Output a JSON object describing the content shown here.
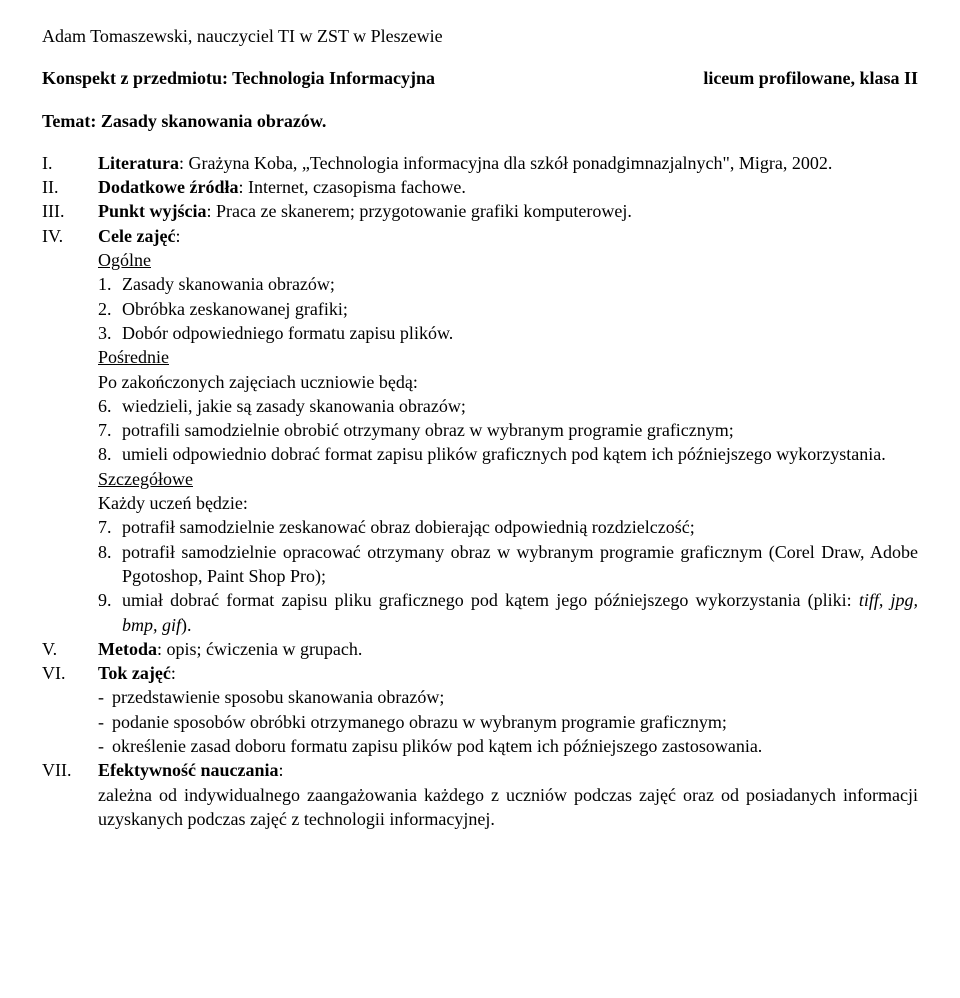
{
  "header": {
    "author": "Adam Tomaszewski, nauczyciel TI w ZST w Pleszewie",
    "subject_label": "Konspekt z przedmiotu: Technologia Informacyjna",
    "class_label": "liceum profilowane, klasa II",
    "topic_prefix": "Temat: ",
    "topic_text": "Zasady skanowania obrazów."
  },
  "items": {
    "I": {
      "label": "I.",
      "prefix": "Literatura",
      "rest": ": Grażyna Koba, „Technologia informacyjna dla szkół ponadgimnazjalnych\", Migra, 2002."
    },
    "II": {
      "label": "II.",
      "prefix": "Dodatkowe źródła",
      "rest": ": Internet, czasopisma fachowe."
    },
    "III": {
      "label": "III.",
      "prefix": "Punkt wyjścia",
      "rest": ": Praca ze skanerem; przygotowanie grafiki komputerowej."
    },
    "IV": {
      "label": "IV.",
      "prefix": "Cele zajęć",
      "rest": ":",
      "ogolne": "Ogólne",
      "o1": "Zasady skanowania obrazów;",
      "o2": "Obróbka zeskanowanej grafiki;",
      "o3": "Dobór odpowiedniego formatu zapisu plików.",
      "posrednie": "Pośrednie",
      "p_intro": "Po zakończonych zajęciach uczniowie będą:",
      "p6": "wiedzieli, jakie są zasady skanowania obrazów;",
      "p7": "potrafili samodzielnie obrobić otrzymany obraz w wybranym programie graficznym;",
      "p8": "umieli odpowiednio dobrać format zapisu plików graficznych pod kątem ich późniejszego wykorzystania.",
      "szczegolowe": "Szczegółowe",
      "s_intro": "Każdy uczeń będzie:",
      "s7": "potrafił samodzielnie zeskanować obraz dobierając odpowiednią rozdzielczość;",
      "s8": "potrafił samodzielnie opracować otrzymany obraz w wybranym programie graficznym (Corel Draw, Adobe Pgotoshop, Paint Shop Pro);",
      "s9a": "umiał dobrać format zapisu pliku graficznego pod kątem jego późniejszego wykorzystania (pliki: ",
      "s9b": "tiff, jpg, bmp, gif",
      "s9c": ")."
    },
    "V": {
      "label": "V.",
      "prefix": "Metoda",
      "rest": ": opis; ćwiczenia w grupach."
    },
    "VI": {
      "label": "VI.",
      "prefix": "Tok zajęć",
      "rest": ":",
      "d1": "przedstawienie sposobu skanowania obrazów;",
      "d2": "podanie sposobów obróbki otrzymanego obrazu w wybranym programie graficznym;",
      "d3": "określenie zasad doboru formatu zapisu plików pod kątem ich późniejszego zastosowania."
    },
    "VII": {
      "label": "VII.",
      "prefix": "Efektywność nauczania",
      "rest": ":",
      "body": "zależna od indywidualnego zaangażowania każdego z uczniów podczas zajęć oraz od posiadanych informacji uzyskanych podczas zajęć z technologii informacyjnej."
    }
  },
  "nums": {
    "n1": "1.",
    "n2": "2.",
    "n3": "3.",
    "n6": "6.",
    "n7": "7.",
    "n8": "8.",
    "n9": "9."
  },
  "dash": "-"
}
